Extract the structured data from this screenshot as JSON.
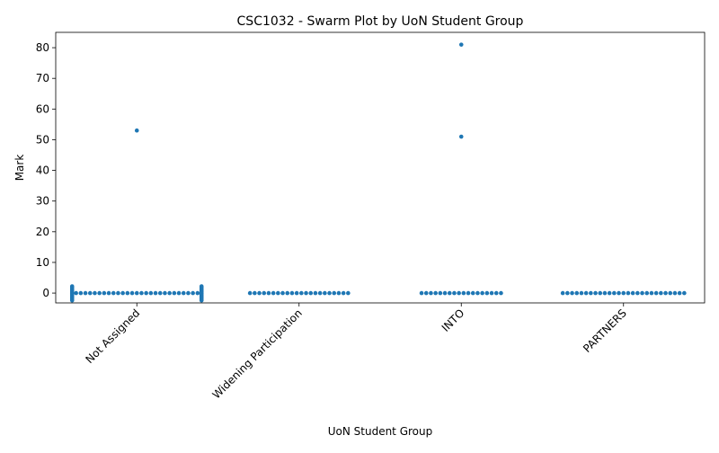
{
  "chart_data": {
    "type": "scatter",
    "subtype": "swarm",
    "title": "CSC1032 - Swarm Plot by UoN Student Group",
    "xlabel": "UoN Student Group",
    "ylabel": "Mark",
    "categories": [
      "Not Assigned",
      "Widening Participation",
      "INTO",
      "PARTNERS"
    ],
    "ylim": [
      -3.2,
      85
    ],
    "yticks": [
      0,
      10,
      20,
      30,
      40,
      50,
      60,
      70,
      80
    ],
    "grid": false,
    "legend": "none",
    "marker_color": "#1f77b4",
    "series": [
      {
        "category": "Not Assigned",
        "values": [
          53,
          0,
          0,
          0,
          0,
          0,
          0,
          0,
          0,
          0,
          0,
          0,
          0,
          0,
          0,
          0,
          0,
          0,
          0,
          0,
          0,
          0,
          0,
          0,
          0,
          0,
          0,
          0,
          0,
          0,
          0,
          0,
          0,
          0,
          0,
          0,
          0,
          0,
          0,
          0,
          0,
          0,
          0,
          0,
          0,
          0,
          0,
          0,
          0,
          0,
          0,
          0,
          0,
          0,
          0,
          0
        ]
      },
      {
        "category": "Widening Participation",
        "values": [
          0,
          0,
          0,
          0,
          0,
          0,
          0,
          0,
          0,
          0,
          0,
          0,
          0,
          0,
          0,
          0,
          0,
          0,
          0,
          0,
          0,
          0
        ]
      },
      {
        "category": "INTO",
        "values": [
          81,
          51,
          0,
          0,
          0,
          0,
          0,
          0,
          0,
          0,
          0,
          0,
          0,
          0,
          0,
          0,
          0,
          0,
          0,
          0
        ]
      },
      {
        "category": "PARTNERS",
        "values": [
          0,
          0,
          0,
          0,
          0,
          0,
          0,
          0,
          0,
          0,
          0,
          0,
          0,
          0,
          0,
          0,
          0,
          0,
          0,
          0,
          0,
          0,
          0,
          0,
          0,
          0,
          0
        ]
      }
    ]
  }
}
